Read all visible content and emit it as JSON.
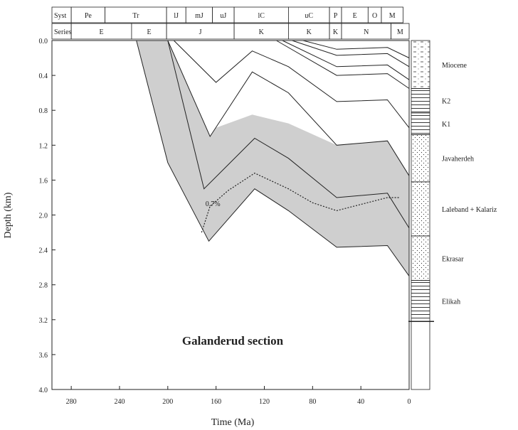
{
  "chart_data": {
    "type": "line",
    "title": "Galanderud  section",
    "xlabel": "Time (Ma)",
    "ylabel": "Depth (km)",
    "xlim": [
      296,
      0
    ],
    "ylim": [
      0,
      4.0
    ],
    "x_ticks": [
      "280",
      "240",
      "200",
      "160",
      "120",
      "80",
      "40",
      "0"
    ],
    "y_ticks": [
      "0.0",
      "0.4",
      "0.8",
      "1.2",
      "1.6",
      "2.0",
      "2.4",
      "2.8",
      "3.2",
      "3.6",
      "4.0"
    ],
    "system_row": {
      "label": "Syst",
      "cells": [
        {
          "label": "Pe",
          "from": 280,
          "to": 252
        },
        {
          "label": "Tr",
          "from": 252,
          "to": 201
        },
        {
          "label": "lJ",
          "from": 201,
          "to": 185
        },
        {
          "label": "mJ",
          "from": 185,
          "to": 163
        },
        {
          "label": "uJ",
          "from": 163,
          "to": 145
        },
        {
          "label": "lC",
          "from": 145,
          "to": 100
        },
        {
          "label": "uC",
          "from": 100,
          "to": 66
        },
        {
          "label": "P",
          "from": 66,
          "to": 56
        },
        {
          "label": "E",
          "from": 56,
          "to": 34
        },
        {
          "label": "O",
          "from": 34,
          "to": 23
        },
        {
          "label": "M",
          "from": 23,
          "to": 5
        }
      ]
    },
    "series_row": {
      "label": "Series",
      "cells": [
        {
          "label": "E",
          "from": 280,
          "to": 230
        },
        {
          "label": "E",
          "from": 230,
          "to": 201
        },
        {
          "label": "J",
          "from": 201,
          "to": 145
        },
        {
          "label": "K",
          "from": 145,
          "to": 100
        },
        {
          "label": "K",
          "from": 100,
          "to": 66
        },
        {
          "label": "K",
          "from": 66,
          "to": 56
        },
        {
          "label": "N",
          "from": 56,
          "to": 15
        },
        {
          "label": "M",
          "from": 15,
          "to": 0
        }
      ]
    },
    "shaded_band": {
      "upper": [
        [
          226,
          0
        ],
        [
          200,
          0
        ],
        [
          165,
          1.1
        ],
        [
          160,
          1.0
        ],
        [
          130,
          0.85
        ],
        [
          100,
          0.95
        ],
        [
          60,
          1.2
        ],
        [
          18,
          1.15
        ],
        [
          0,
          1.55
        ]
      ],
      "lower": [
        [
          226,
          0
        ],
        [
          200,
          1.4
        ],
        [
          166,
          2.3
        ],
        [
          128,
          1.7
        ],
        [
          100,
          1.95
        ],
        [
          60,
          2.37
        ],
        [
          18,
          2.35
        ],
        [
          0,
          2.7
        ]
      ]
    },
    "burial_curves": [
      {
        "points": [
          [
            226,
            0
          ],
          [
            200,
            1.4
          ],
          [
            166,
            2.3
          ],
          [
            128,
            1.7
          ],
          [
            100,
            1.95
          ],
          [
            60,
            2.37
          ],
          [
            18,
            2.35
          ],
          [
            0,
            2.7
          ]
        ]
      },
      {
        "points": [
          [
            200,
            0
          ],
          [
            170,
            1.7
          ],
          [
            128,
            1.12
          ],
          [
            100,
            1.35
          ],
          [
            60,
            1.8
          ],
          [
            18,
            1.75
          ],
          [
            0,
            2.15
          ]
        ]
      },
      {
        "points": [
          [
            200,
            0
          ],
          [
            165,
            1.1
          ],
          [
            130,
            0.36
          ],
          [
            100,
            0.6
          ],
          [
            60,
            1.2
          ],
          [
            18,
            1.15
          ],
          [
            0,
            1.55
          ]
        ]
      },
      {
        "points": [
          [
            195,
            0
          ],
          [
            160,
            0.48
          ],
          [
            130,
            0.12
          ],
          [
            100,
            0.3
          ],
          [
            60,
            0.7
          ],
          [
            18,
            0.68
          ],
          [
            0,
            1.0
          ]
        ]
      },
      {
        "points": [
          [
            110,
            0
          ],
          [
            60,
            0.4
          ],
          [
            18,
            0.38
          ],
          [
            0,
            0.55
          ]
        ]
      },
      {
        "points": [
          [
            105,
            0
          ],
          [
            60,
            0.3
          ],
          [
            18,
            0.28
          ],
          [
            0,
            0.45
          ]
        ]
      },
      {
        "points": [
          [
            97,
            0
          ],
          [
            60,
            0.17
          ],
          [
            18,
            0.15
          ],
          [
            0,
            0.3
          ]
        ]
      },
      {
        "points": [
          [
            88,
            0
          ],
          [
            60,
            0.1
          ],
          [
            18,
            0.08
          ],
          [
            0,
            0.2
          ]
        ]
      }
    ],
    "vitrinite_curve": {
      "label": "0.7%",
      "points": [
        [
          172,
          2.2
        ],
        [
          165,
          1.9
        ],
        [
          150,
          1.72
        ],
        [
          128,
          1.52
        ],
        [
          100,
          1.7
        ],
        [
          80,
          1.86
        ],
        [
          60,
          1.95
        ],
        [
          18,
          1.8
        ],
        [
          8,
          1.8
        ]
      ]
    },
    "formations": [
      {
        "label": "Miocene",
        "top": 0.0,
        "bottom": 0.55,
        "pattern": "dash"
      },
      {
        "label": "K2",
        "top": 0.55,
        "bottom": 0.83,
        "pattern": "lines"
      },
      {
        "label": "K1",
        "top": 0.83,
        "bottom": 1.08,
        "pattern": "lines"
      },
      {
        "label": "Javaherdeh",
        "top": 1.08,
        "bottom": 1.62,
        "pattern": "dots"
      },
      {
        "label": "Laleband + Kalariz",
        "top": 1.62,
        "bottom": 2.24,
        "pattern": "dots"
      },
      {
        "label": "Ekrasar",
        "top": 2.24,
        "bottom": 2.75,
        "pattern": "dots"
      },
      {
        "label": "Elikah",
        "top": 2.75,
        "bottom": 3.22,
        "pattern": "lines"
      }
    ],
    "grid": false
  }
}
